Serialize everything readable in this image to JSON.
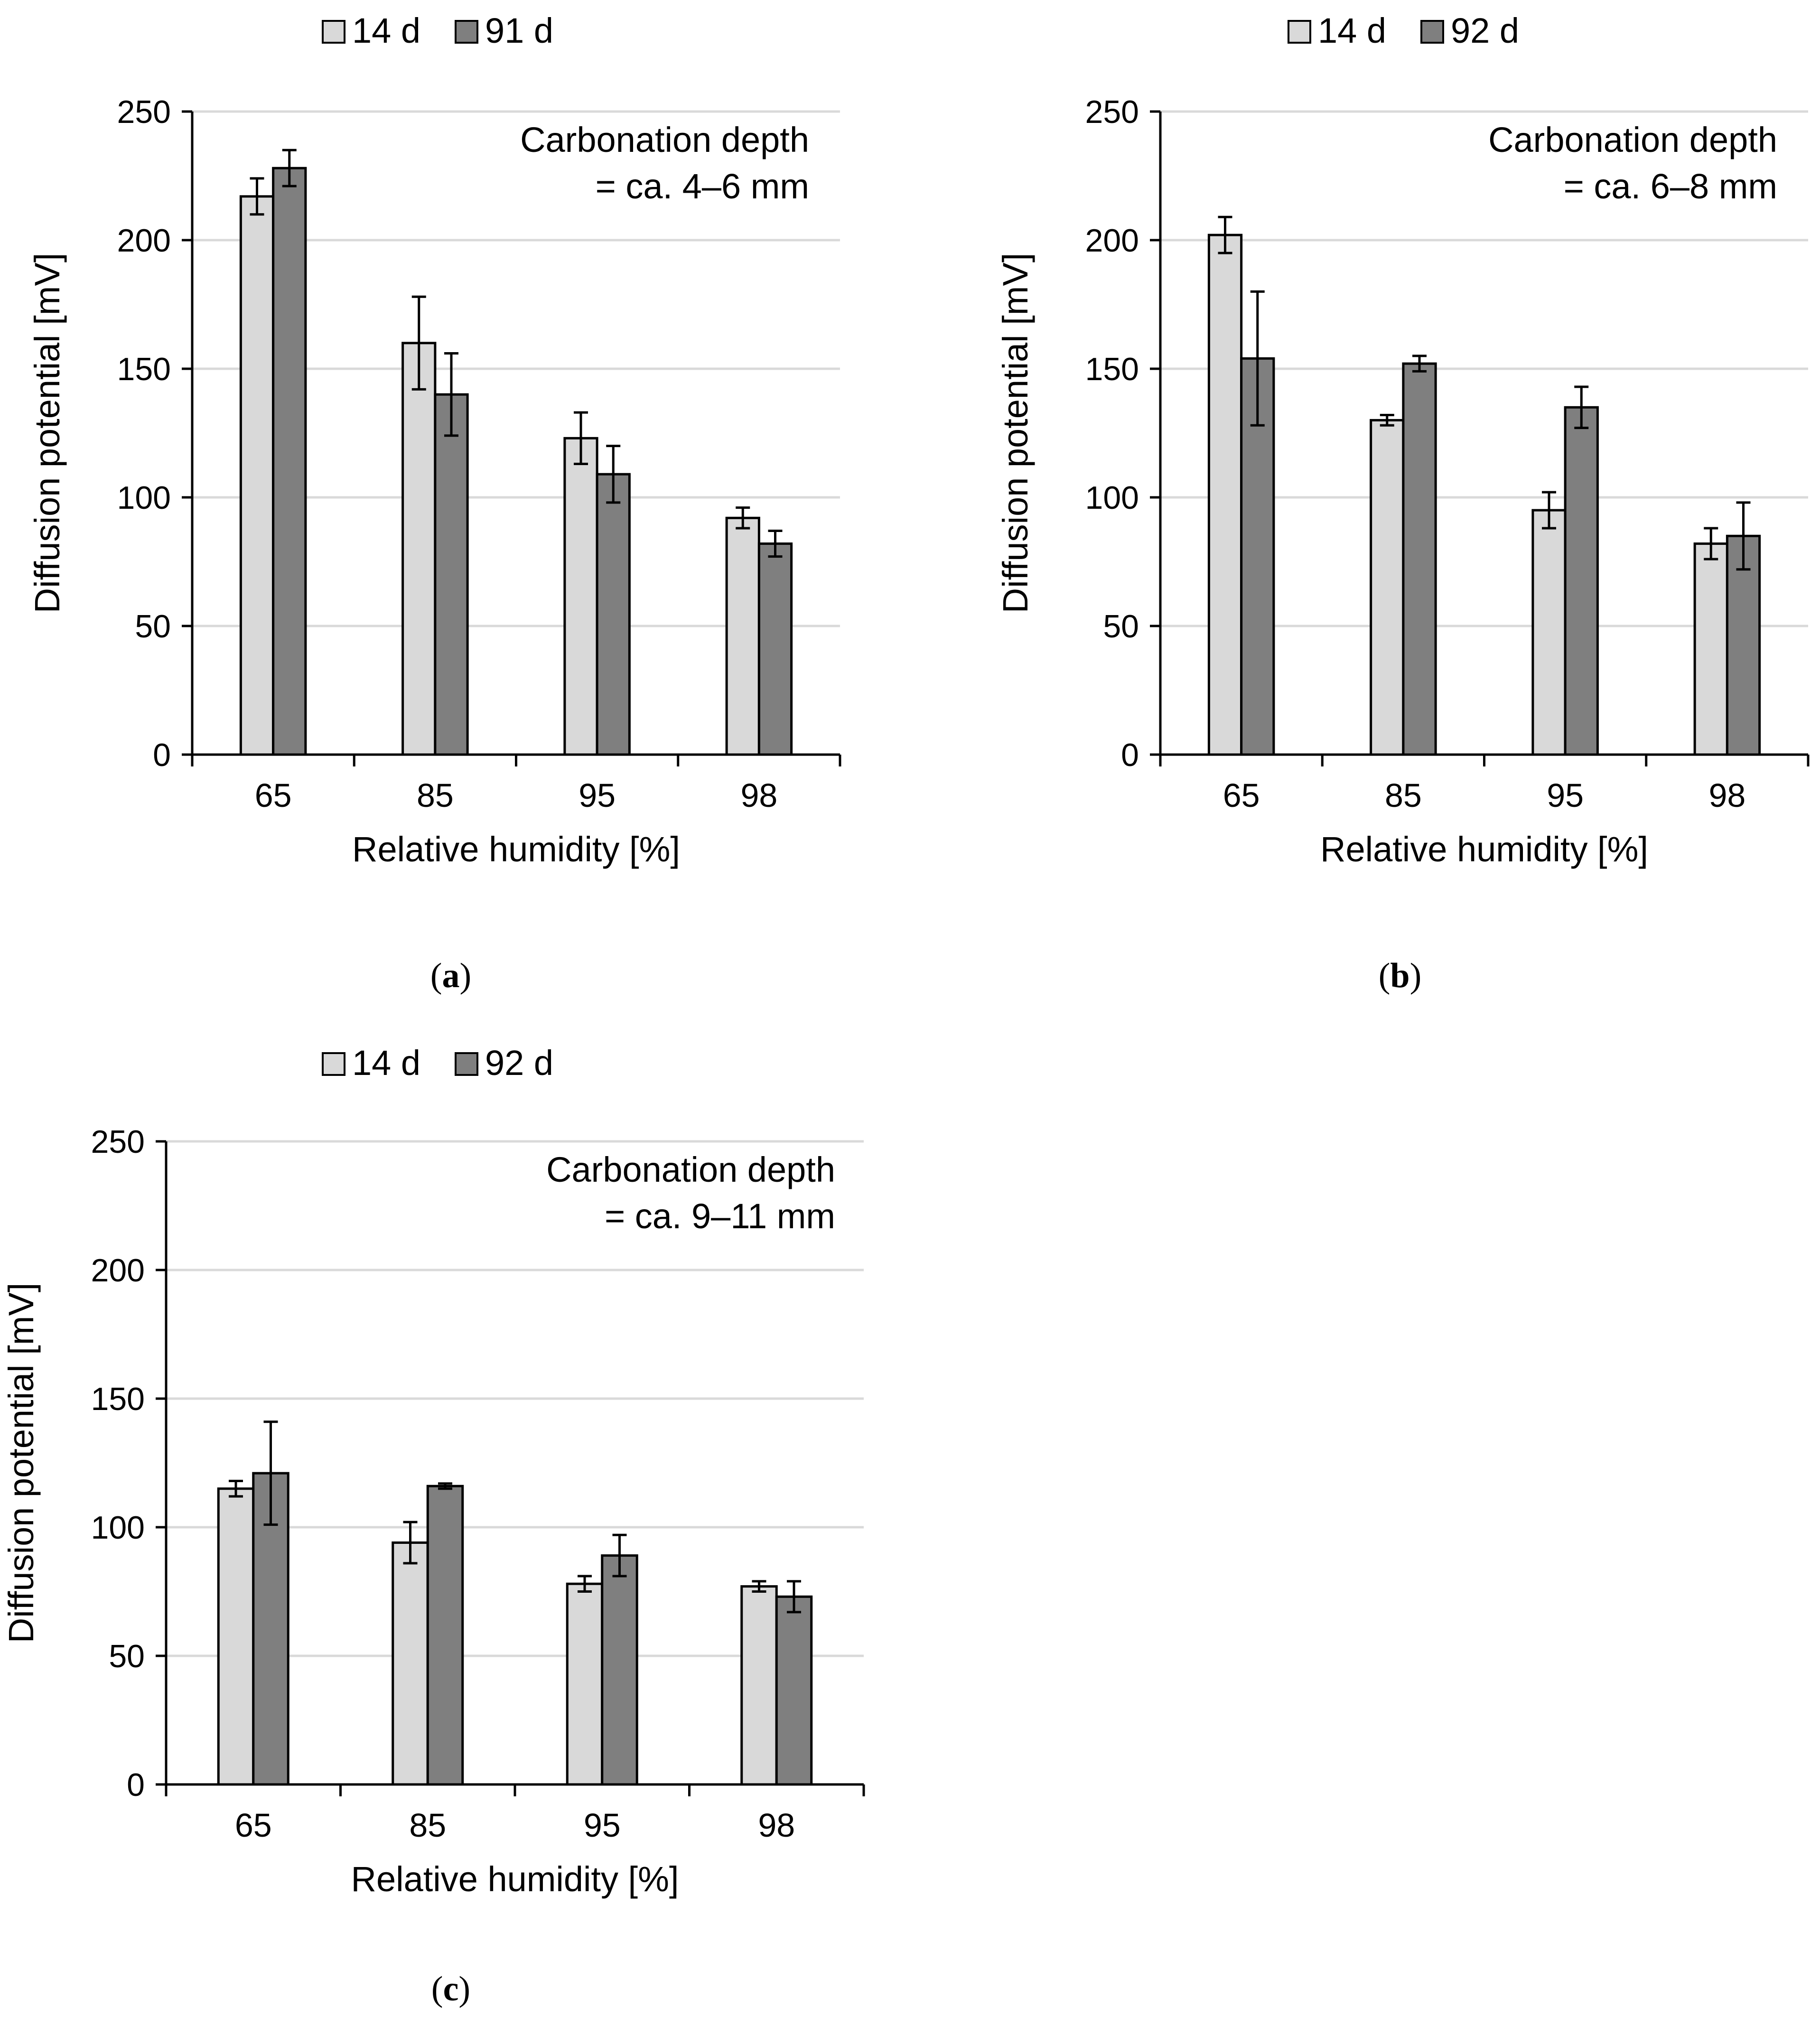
{
  "figure": {
    "colors": {
      "series_14d": "#d9d9d9",
      "series_late": "#7f7f7f",
      "grid": "#d9d9d9",
      "axis": "#000000"
    }
  },
  "chart_data": [
    {
      "panel": "a",
      "caption_letter": "a",
      "type": "bar",
      "xlabel": "Relative humidity [%]",
      "ylabel": "Diffusion potential [mV]",
      "ylim": [
        0,
        250
      ],
      "yticks": [
        0,
        50,
        100,
        150,
        200,
        250
      ],
      "grid": true,
      "legend_position": "top",
      "categories": [
        "65",
        "85",
        "95",
        "98"
      ],
      "annotation": [
        "Carbonation depth",
        "= ca. 4–6 mm"
      ],
      "series": [
        {
          "name": "14 d",
          "values": [
            217,
            160,
            123,
            92
          ],
          "errors": [
            7,
            18,
            10,
            4
          ]
        },
        {
          "name": "91 d",
          "values": [
            228,
            140,
            109,
            82
          ],
          "errors": [
            7,
            16,
            11,
            5
          ]
        }
      ]
    },
    {
      "panel": "b",
      "caption_letter": "b",
      "type": "bar",
      "xlabel": "Relative humidity [%]",
      "ylabel": "Diffusion potential [mV]",
      "ylim": [
        0,
        250
      ],
      "yticks": [
        0,
        50,
        100,
        150,
        200,
        250
      ],
      "grid": true,
      "legend_position": "top",
      "categories": [
        "65",
        "85",
        "95",
        "98"
      ],
      "annotation": [
        "Carbonation depth",
        "= ca. 6–8 mm"
      ],
      "series": [
        {
          "name": "14 d",
          "values": [
            202,
            130,
            95,
            82
          ],
          "errors": [
            7,
            2,
            7,
            6
          ]
        },
        {
          "name": "92 d",
          "values": [
            154,
            152,
            135,
            85
          ],
          "errors": [
            26,
            3,
            8,
            13
          ]
        }
      ]
    },
    {
      "panel": "c",
      "caption_letter": "c",
      "type": "bar",
      "xlabel": "Relative humidity [%]",
      "ylabel": "Diffusion potential [mV]",
      "ylim": [
        0,
        250
      ],
      "yticks": [
        0,
        50,
        100,
        150,
        200,
        250
      ],
      "grid": true,
      "legend_position": "top",
      "categories": [
        "65",
        "85",
        "95",
        "98"
      ],
      "annotation": [
        "Carbonation depth",
        "= ca. 9–11 mm"
      ],
      "series": [
        {
          "name": "14 d",
          "values": [
            115,
            94,
            78,
            77
          ],
          "errors": [
            3,
            8,
            3,
            2
          ]
        },
        {
          "name": "92 d",
          "values": [
            121,
            116,
            89,
            73
          ],
          "errors": [
            20,
            1,
            8,
            6
          ]
        }
      ]
    }
  ]
}
